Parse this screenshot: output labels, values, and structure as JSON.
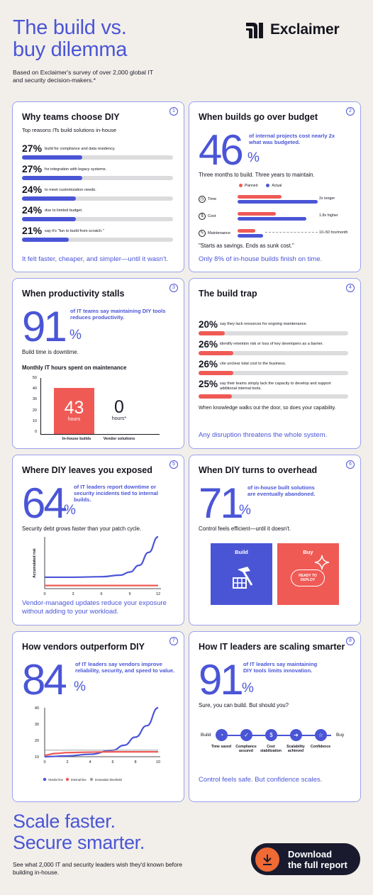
{
  "header": {
    "title_line1": "The build vs.",
    "title_line2": "buy dilemma",
    "subtitle": "Based on Exclaimer's survey of over 2,000 global IT and security decision-makers.*",
    "logo_text": "Exclaimer"
  },
  "card1": {
    "number": "1",
    "title": "Why teams choose DIY",
    "subtitle": "Top reasons ITs build solutions in-house",
    "rows": [
      {
        "pct": "27%",
        "label": "build for compliance and data residency.",
        "value": 27
      },
      {
        "pct": "27%",
        "label": "for integration with legacy systems.",
        "value": 27
      },
      {
        "pct": "24%",
        "label": "to meet customization needs.",
        "value": 24
      },
      {
        "pct": "24%",
        "label": "due to limited budget.",
        "value": 24
      },
      {
        "pct": "21%",
        "label": "say it's \"fun to build from scratch.\"",
        "value": 21
      }
    ],
    "footer": "It felt faster, cheaper, and simpler—until it wasn't."
  },
  "card2": {
    "number": "2",
    "title": "When builds go over budget",
    "big": "46",
    "pct": "%",
    "big_text": "of internal projects cost nearly 2x what was budgeted.",
    "line": "Three months to build. Three years to maintain.",
    "legend_planned": "Planned",
    "legend_actual": "Actual",
    "rows": [
      {
        "icon": "clock-icon",
        "label": "Time",
        "note": "2x longer",
        "planned": 0.55,
        "actual": 1.0
      },
      {
        "icon": "dollar-icon",
        "label": "Cost",
        "note": "1.8x higher",
        "planned": 0.48,
        "actual": 0.86
      },
      {
        "icon": "wrench-icon",
        "label": "Maintenance",
        "note": "10–50 hrs/month",
        "planned": 0.22,
        "actual": 0.32
      }
    ],
    "quote": "\"Starts as savings. Ends as sunk cost.\"",
    "footer": "Only 8% of in-house builds finish on time."
  },
  "card3": {
    "number": "3",
    "title": "When productivity stalls",
    "big": "91",
    "pct": "%",
    "big_text": "of IT teams say maintaining DIY tools reduces productivity.",
    "line": "Build time is downtime.",
    "chart_data": {
      "type": "bar",
      "title": "Monthly IT hours spent on maintenance",
      "categories": [
        "In-house builds",
        "Vendor solutions"
      ],
      "values": [
        43,
        0
      ],
      "value_labels": [
        "43",
        "0"
      ],
      "unit_labels": [
        "hours",
        "hours*"
      ],
      "yticks": [
        "50",
        "40",
        "30",
        "20",
        "10",
        "0"
      ],
      "ylim": [
        0,
        50
      ]
    }
  },
  "card4": {
    "number": "4",
    "title": "The build trap",
    "rows": [
      {
        "pct": "20%",
        "label": "say they lack resources for ongoing maintenance.",
        "value": 20
      },
      {
        "pct": "26%",
        "label": "identify retention risk or loss of key developers as a barrier.",
        "value": 26
      },
      {
        "pct": "26%",
        "label": "cite unclear total cost to the business.",
        "value": 26
      },
      {
        "pct": "25%",
        "label": "say their teams simply lack the capacity to develop and support additional internal tools.",
        "value": 25
      }
    ],
    "line": "When knowledge walks out the door, so does your capability.",
    "footer": "Any disruption threatens the whole system."
  },
  "card5": {
    "number": "5",
    "title": "Where DIY leaves you exposed",
    "big": "64",
    "pct": "%",
    "big_text": "of IT leaders report downtime or security incidents tied to internal builds.",
    "line": "Security debt grows faster than your patch cycle.",
    "chart_data": {
      "type": "line",
      "ylabel": "Accumulated risk",
      "x_ticks": [
        "0",
        "3",
        "6",
        "9",
        "12"
      ],
      "xlim": [
        0,
        12
      ],
      "series": [
        {
          "color": "#4a55d6",
          "x": [
            0,
            3,
            6,
            8,
            9,
            10,
            11,
            12
          ],
          "y": [
            0.22,
            0.22,
            0.23,
            0.26,
            0.32,
            0.45,
            0.7,
            1.0
          ]
        },
        {
          "color": "#ef5a55",
          "x": [
            0,
            12
          ],
          "y": [
            0.06,
            0.06
          ]
        }
      ]
    },
    "footer": "Vendor-managed updates reduce your exposure without adding to your workload."
  },
  "card6": {
    "number": "6",
    "title": "When DIY turns to overhead",
    "big": "71",
    "pct": "%",
    "big_text": "of in-house built solutions are eventually abandoned.",
    "line": "Control feels efficient—until it doesn't.",
    "build_label": "Build",
    "buy_label": "Buy",
    "ready_label": "READY TO DEPLOY"
  },
  "card7": {
    "number": "7",
    "title": "How vendors outperform DIY",
    "big": "84",
    "pct": "%",
    "big_text": "of IT leaders say vendors improve reliability, security, and speed to value.",
    "chart_data": {
      "type": "line",
      "x_ticks": [
        "0",
        "2",
        "4",
        "6",
        "8",
        "10"
      ],
      "y_ticks": [
        "40",
        "30",
        "20",
        "10"
      ],
      "xlim": [
        0,
        10
      ],
      "ylim": [
        10,
        40
      ],
      "series": [
        {
          "name": "Vendor line",
          "color": "#4a55d6",
          "x": [
            0,
            2,
            4,
            6,
            7,
            8,
            9,
            10
          ],
          "y": [
            10,
            10.5,
            11.5,
            14,
            17,
            22,
            29,
            40
          ]
        },
        {
          "name": "Internal line",
          "color": "#ef5a55",
          "x": [
            0,
            1,
            2,
            4,
            6,
            8,
            10
          ],
          "y": [
            11,
            12,
            12.5,
            12.8,
            13,
            13,
            13
          ]
        },
        {
          "name": "Innovation threshold",
          "color": "#9aa0a6",
          "x": [
            0,
            10
          ],
          "y": [
            14,
            14
          ]
        }
      ]
    }
  },
  "card8": {
    "number": "8",
    "title": "How IT leaders are scaling smarter",
    "big": "91",
    "pct": "%",
    "big_text": "of IT leaders say maintaining DIY tools limits innovation.",
    "line": "Sure, you can build. But should you?",
    "build_label": "Build",
    "buy_label": "Buy",
    "steps": [
      {
        "icon": "clock-icon",
        "glyph": "◔",
        "label": "Time saved"
      },
      {
        "icon": "shield-icon",
        "glyph": "✓",
        "label": "Compliance assured"
      },
      {
        "icon": "dollar-icon",
        "glyph": "$",
        "label": "Cost stabilization"
      },
      {
        "icon": "arrow-icon",
        "glyph": "➜",
        "label": "Scalability achieved"
      },
      {
        "icon": "star-icon",
        "glyph": "☆",
        "label": "Confidence"
      }
    ],
    "footer": "Control feels safe. But confidence scales."
  },
  "footer": {
    "title_line1": "Scale faster.",
    "title_line2": "Secure smarter.",
    "subtitle": "See what 2,000 IT and security leaders wish they'd known before building in-house.",
    "button_line1": "Download",
    "button_line2": "the full report"
  },
  "colors": {
    "blue": "#4a55d6",
    "red": "#ef5a55",
    "background": "#f2efea",
    "orange": "#ef6a34",
    "dark": "#191a2e"
  }
}
